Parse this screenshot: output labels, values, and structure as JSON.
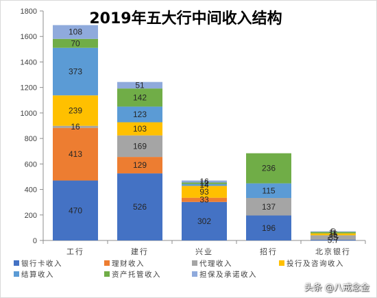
{
  "chart_data": {
    "type": "bar",
    "stacked": true,
    "title": "2019年五大行中间收入结构",
    "categories": [
      "工行",
      "建行",
      "兴业",
      "招行",
      "北京银行"
    ],
    "ylim": [
      0,
      1800
    ],
    "yticks": [
      0,
      200,
      400,
      600,
      800,
      1000,
      1200,
      1400,
      1600,
      1800
    ],
    "grid": false,
    "legend": "bottom",
    "data_labels": true,
    "series": [
      {
        "name": "银行卡收入",
        "color": "#4472C4",
        "values": [
          470,
          526,
          302,
          196,
          5.7
        ]
      },
      {
        "name": "理财收入",
        "color": "#ED7D31",
        "values": [
          413,
          129,
          33,
          null,
          null
        ]
      },
      {
        "name": "代理收入",
        "color": "#A5A5A5",
        "values": [
          16,
          169,
          null,
          137,
          35
        ]
      },
      {
        "name": "投行及咨询收入",
        "color": "#FFC000",
        "values": [
          239,
          103,
          93,
          null,
          15
        ]
      },
      {
        "name": "结算收入",
        "color": "#5B9BD5",
        "values": [
          373,
          123,
          14,
          115,
          null
        ]
      },
      {
        "name": "资产托管收入",
        "color": "#70AD47",
        "values": [
          70,
          142,
          12,
          236,
          11
        ]
      },
      {
        "name": "担保及承诺收入",
        "color": "#8FAADC",
        "values": [
          108,
          51,
          16,
          null,
          5
        ]
      }
    ]
  },
  "watermark": "头条 @八戒念金"
}
